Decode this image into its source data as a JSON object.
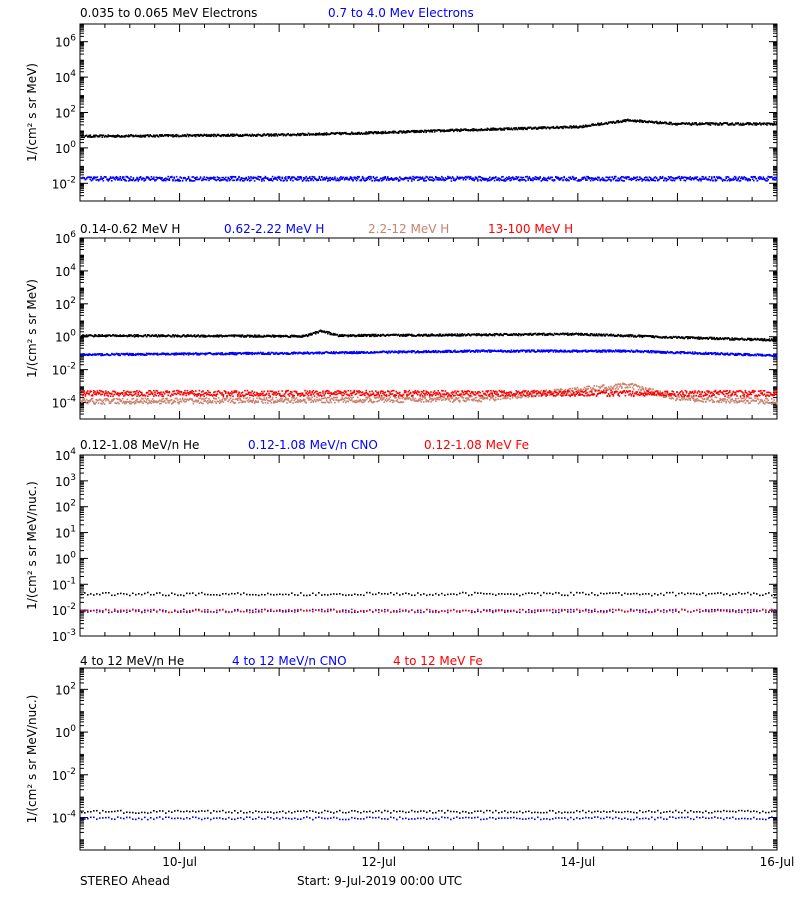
{
  "colors": {
    "black": "#000000",
    "blue": "#0000ff",
    "tan": "#c8826e",
    "red": "#ff0000"
  },
  "x_axis": {
    "xlim": [
      "9-Jul-2019 00:00",
      "16-Jul-2019 00:00"
    ],
    "tick_labels": [
      "10-Jul",
      "12-Jul",
      "14-Jul",
      "16-Jul"
    ]
  },
  "footer": {
    "left": "STEREO Ahead",
    "center": "Start:  9-Jul-2019 00:00 UTC"
  },
  "chart_data": [
    {
      "type": "scatter",
      "yscale": "log",
      "ylabel": "1/(cm² s sr MeV)",
      "ylim": [
        0.001,
        10000000
      ],
      "ytick_labels": [
        "10^-2",
        "10^0",
        "10^2",
        "10^4",
        "10^6"
      ],
      "series": [
        {
          "name": "0.035 to 0.065 MeV Electrons",
          "color": "#000000",
          "points": [
            [
              "9-Jul 00:00",
              5
            ],
            [
              "10-Jul 00:00",
              5.5
            ],
            [
              "11-Jul 00:00",
              6
            ],
            [
              "12-Jul 00:00",
              8
            ],
            [
              "13-Jul 00:00",
              12
            ],
            [
              "14-Jul 00:00",
              17
            ],
            [
              "14-Jul 12:00",
              40
            ],
            [
              "15-Jul 00:00",
              25
            ],
            [
              "16-Jul 00:00",
              25
            ]
          ]
        },
        {
          "name": "0.7 to 4.0 Mev Electrons",
          "color": "#0000ff",
          "points": [
            [
              "9-Jul 00:00",
              0.02
            ],
            [
              "12-Jul 12:00",
              0.02
            ],
            [
              "16-Jul 00:00",
              0.02
            ]
          ]
        }
      ]
    },
    {
      "type": "scatter",
      "yscale": "log",
      "ylabel": "1/(cm² s sr MeV)",
      "ylim": [
        1e-05,
        1000000
      ],
      "ytick_labels": [
        "10^-4",
        "10^-2",
        "10^0",
        "10^2",
        "10^4",
        "10^6"
      ],
      "series": [
        {
          "name": "0.14-0.62 MeV H",
          "color": "#000000",
          "points": [
            [
              "9-Jul 00:00",
              1.3
            ],
            [
              "11-Jul 06:00",
              1.2
            ],
            [
              "11-Jul 10:00",
              2.5
            ],
            [
              "11-Jul 14:00",
              1.3
            ],
            [
              "12-Jul 12:00",
              1.4
            ],
            [
              "14-Jul 00:00",
              1.6
            ],
            [
              "15-Jul 00:00",
              1.0
            ],
            [
              "16-Jul 00:00",
              0.7
            ]
          ]
        },
        {
          "name": "0.62-2.22 MeV H",
          "color": "#0000ff",
          "points": [
            [
              "9-Jul 00:00",
              0.09
            ],
            [
              "11-Jul 00:00",
              0.11
            ],
            [
              "13-Jul 00:00",
              0.15
            ],
            [
              "14-Jul 12:00",
              0.15
            ],
            [
              "16-Jul 00:00",
              0.08
            ]
          ]
        },
        {
          "name": "2.2-12 MeV H",
          "color": "#c8826e",
          "points": [
            [
              "9-Jul 00:00",
              0.00013
            ],
            [
              "13-Jul 00:00",
              0.00018
            ],
            [
              "14-Jul 12:00",
              0.0012
            ],
            [
              "15-Jul 00:00",
              0.0002
            ],
            [
              "16-Jul 00:00",
              0.00013
            ]
          ]
        },
        {
          "name": "13-100 MeV H",
          "color": "#ff0000",
          "points": [
            [
              "9-Jul 00:00",
              0.0004
            ],
            [
              "12-Jul 12:00",
              0.0004
            ],
            [
              "16-Jul 00:00",
              0.0004
            ]
          ]
        }
      ]
    },
    {
      "type": "scatter",
      "yscale": "log",
      "ylabel": "1/(cm² s sr MeV/nuc.)",
      "ylim": [
        0.001,
        10000
      ],
      "ytick_labels": [
        "10^-3",
        "10^-2",
        "10^-1",
        "10^0",
        "10^1",
        "10^2",
        "10^3",
        "10^4"
      ],
      "series": [
        {
          "name": "0.12-1.08 MeV/n He",
          "color": "#000000",
          "points": [
            [
              "9-Jul 00:00",
              0.045
            ],
            [
              "12-Jul 12:00",
              0.045
            ],
            [
              "16-Jul 00:00",
              0.045
            ]
          ]
        },
        {
          "name": "0.12-1.08 MeV/n CNO",
          "color": "#0000ff",
          "points": [
            [
              "9-Jul 00:00",
              0.01
            ],
            [
              "16-Jul 00:00",
              0.01
            ]
          ]
        },
        {
          "name": "0.12-1.08 MeV Fe",
          "color": "#ff0000",
          "points": [
            [
              "9-Jul 00:00",
              0.01
            ],
            [
              "16-Jul 00:00",
              0.01
            ]
          ]
        }
      ]
    },
    {
      "type": "scatter",
      "yscale": "log",
      "ylabel": "1/(cm² s sr MeV/nuc.)",
      "ylim": [
        3e-06,
        1000
      ],
      "ytick_labels": [
        "10^-4",
        "10^-2",
        "10^0",
        "10^2"
      ],
      "series": [
        {
          "name": "4 to 12 MeV/n He",
          "color": "#000000",
          "points": [
            [
              "9-Jul 00:00",
              0.0002
            ],
            [
              "16-Jul 00:00",
              0.0002
            ]
          ]
        },
        {
          "name": "4 to 12 MeV/n CNO",
          "color": "#0000ff",
          "points": [
            [
              "9-Jul 00:00",
              0.0001
            ],
            [
              "16-Jul 00:00",
              0.0001
            ]
          ]
        },
        {
          "name": "4 to 12 MeV Fe",
          "color": "#ff0000",
          "points": []
        }
      ]
    }
  ]
}
